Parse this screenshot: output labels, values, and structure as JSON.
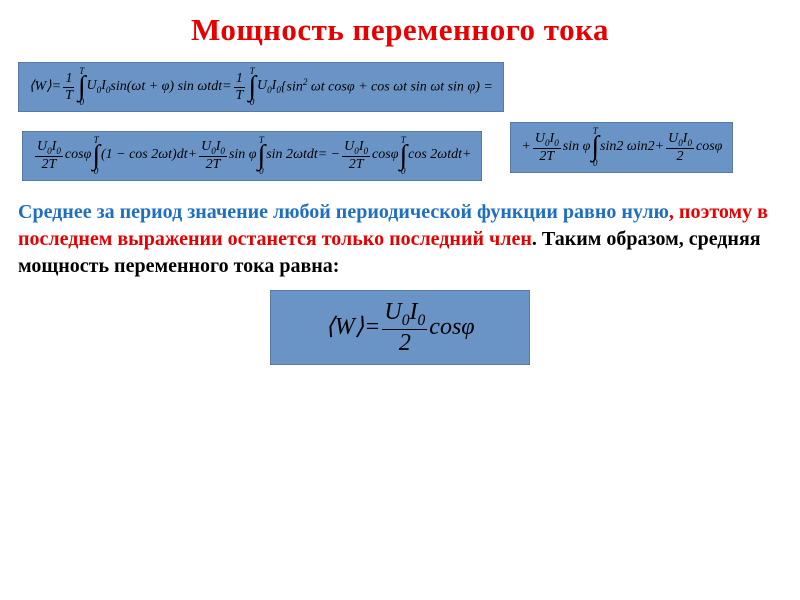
{
  "colors": {
    "title": "#e60000",
    "boxFill": "#6b94c6",
    "boxBorder": "#5a7aa6",
    "textBlue": "#1f6fc0",
    "textRed": "#e60000",
    "textBlack": "#000000",
    "background": "#ffffff"
  },
  "typography": {
    "titleSize": 31,
    "paragraphSize": 20,
    "formulaSize": 14,
    "finalFormulaSize": 24,
    "family": "Times New Roman"
  },
  "title": "Мощность переменного тока",
  "eq1": {
    "open": "⟨",
    "W": "W",
    "close": "⟩",
    "eq": " = ",
    "fr1_num": "1",
    "fr1_den": "T",
    "int_top": "T",
    "int_bot": "0",
    "p1": "U",
    "p1s": "0",
    "p2": "I",
    "p2s": "0",
    "txt1": " sin(",
    "om1": "ω",
    "t1": "t",
    "plus1": " + ",
    "phi1": "φ",
    "txt2": ") sin ",
    "om2": "ω",
    "t2": "t",
    "d1": "dt",
    "eq2": " = ",
    "fr2_num": "1",
    "fr2_den": "T",
    "int2_top": "T",
    "int2_bot": "0",
    "p3": "U",
    "p3s": "0",
    "p4": "I",
    "p4s": "0",
    "brace": "{sin",
    "sup2": "2",
    "om3": " ω",
    "t3": "t",
    "cos1": " cos",
    "phi2": "φ",
    "plus2": " + cos ",
    "om4": "ω",
    "t4": "t",
    "sin3": " sin ",
    "om5": "ω",
    "t5": "t",
    "sin4": " sin ",
    "phi3": "φ",
    "end": ") ="
  },
  "eq2": {
    "fr1_num_a": "U",
    "fr1_num_as": "0",
    "fr1_num_b": "I",
    "fr1_num_bs": "0",
    "fr1_den": "2T",
    "cos1": " cos",
    "phi1": "φ",
    "int1_top": "T",
    "int1_bot": "0",
    "p1": "(1 − cos 2",
    "om1": "ω",
    "t1": "t",
    "p2": ")",
    "d1": "dt",
    "plus1": " + ",
    "fr2_num_a": "U",
    "fr2_num_as": "0",
    "fr2_num_b": "I",
    "fr2_num_bs": "0",
    "fr2_den": "2T",
    "sin1": " sin ",
    "phi2": "φ",
    "int2_top": "T",
    "int2_bot": "0",
    "p3": "sin 2",
    "om2": "ω",
    "t2": "t",
    "d2": "dt",
    "eq": " = − ",
    "fr3_num_a": "U",
    "fr3_num_as": "0",
    "fr3_num_b": "I",
    "fr3_num_bs": "0",
    "fr3_den": "2T",
    "cos2": "cos",
    "phi3": "φ",
    "int3_top": "T",
    "int3_bot": "0",
    "p4": "cos 2",
    "om3": "ω",
    "t3": "t",
    "d3": "dt",
    "plus2": " +"
  },
  "eq3": {
    "plus1": "+ ",
    "fr1_num_a": "U",
    "fr1_num_as": "0",
    "fr1_num_b": "I",
    "fr1_num_bs": "0",
    "fr1_den": "2T",
    "sin1": " sin ",
    "phi1": "φ",
    "int1_top": "T",
    "int1_bot": "0",
    "p1": "sin2 ",
    "om1": "ω",
    "p2": "in2",
    "plus2": " + ",
    "fr2_num_a": "U",
    "fr2_num_as": "0",
    "fr2_num_b": "I",
    "fr2_num_bs": "0",
    "fr2_den": "2",
    "cos1": " cos",
    "phi2": "φ"
  },
  "paragraph": {
    "s1": "Среднее за период значение любой периодической функции равно нулю",
    "s2": ", ",
    "s3": "поэтому в последнем выражении останется только последний член",
    "s4": ". Таким образом, средняя мощность переменного тока равна:"
  },
  "eqFinal": {
    "open": "⟨",
    "W": "W",
    "close": "⟩",
    "eq": " = ",
    "num_a": "U",
    "num_as": "0",
    "num_b": "I",
    "num_bs": "0",
    "den": "2",
    "cos": " cos",
    "phi": "φ"
  }
}
